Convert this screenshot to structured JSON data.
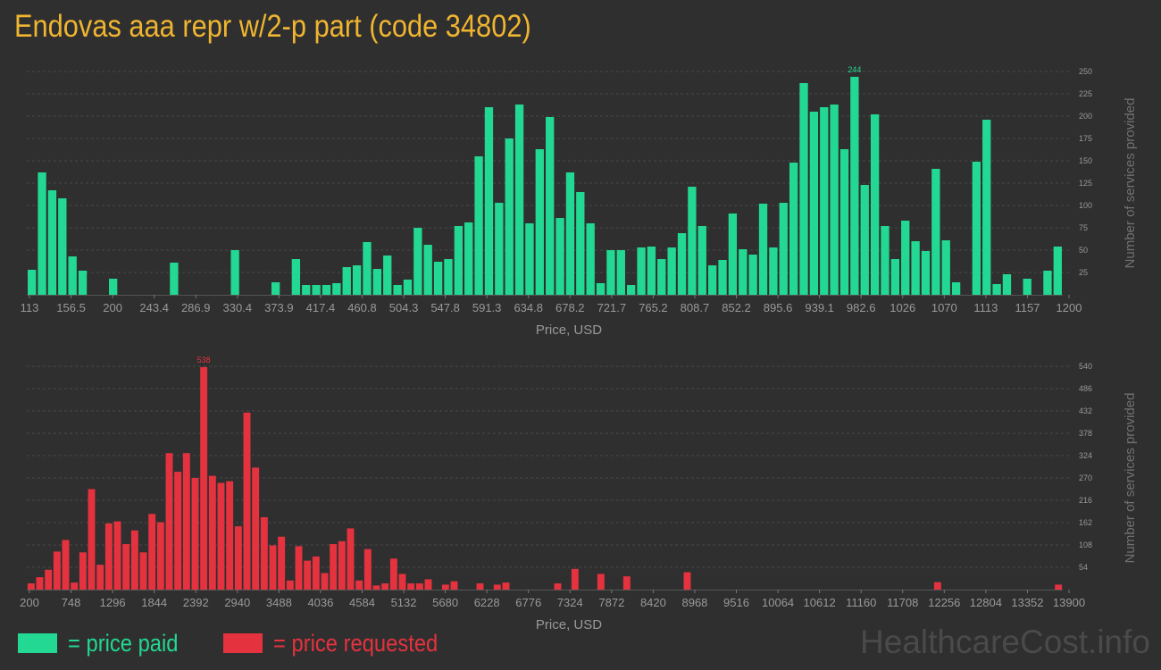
{
  "title": "Endovas aaa repr w/2-p part (code 34802)",
  "colors": {
    "background": "#2f2f2f",
    "paid": "#22d892",
    "requested": "#e5323f",
    "title": "#f0b530",
    "text": "#999999",
    "grid": "#4a4a4a"
  },
  "chart_data": [
    {
      "type": "bar",
      "title": "Price paid",
      "xlabel": "Price, USD",
      "ylabel": "Number of services provided",
      "xlim": [
        113,
        1200
      ],
      "ylim": [
        0,
        250
      ],
      "x_ticks": [
        "113",
        "156.5",
        "200",
        "243.4",
        "286.9",
        "330.4",
        "373.9",
        "417.4",
        "460.8",
        "504.3",
        "547.8",
        "591.3",
        "634.8",
        "678.2",
        "721.7",
        "765.2",
        "808.7",
        "852.2",
        "895.6",
        "939.1",
        "982.6",
        "1026",
        "1070",
        "1113",
        "1157",
        "1200"
      ],
      "y_ticks": [
        "25",
        "50",
        "75",
        "100",
        "125",
        "150",
        "175",
        "200",
        "225",
        "250"
      ],
      "peak_label": "244",
      "values": [
        28,
        137,
        117,
        108,
        43,
        27,
        0,
        0,
        18,
        0,
        0,
        0,
        0,
        0,
        36,
        0,
        0,
        0,
        0,
        0,
        50,
        0,
        0,
        0,
        14,
        0,
        40,
        11,
        11,
        11,
        13,
        31,
        33,
        59,
        29,
        44,
        11,
        17,
        75,
        56,
        37,
        40,
        77,
        81,
        155,
        210,
        103,
        175,
        213,
        80,
        163,
        199,
        86,
        137,
        115,
        80,
        13,
        50,
        50,
        11,
        53,
        54,
        40,
        53,
        69,
        121,
        77,
        33,
        39,
        91,
        51,
        45,
        102,
        53,
        103,
        148,
        237,
        205,
        210,
        213,
        163,
        244,
        123,
        202,
        77,
        40,
        83,
        60,
        49,
        141,
        61,
        14,
        0,
        149,
        196,
        12,
        23,
        0,
        18,
        0,
        27,
        54
      ]
    },
    {
      "type": "bar",
      "title": "Price requested",
      "xlabel": "Price, USD",
      "ylabel": "Number of services provided",
      "xlim": [
        200,
        13900
      ],
      "ylim": [
        0,
        540
      ],
      "x_ticks": [
        "200",
        "748",
        "1296",
        "1844",
        "2392",
        "2940",
        "3488",
        "4036",
        "4584",
        "5132",
        "5680",
        "6228",
        "6776",
        "7324",
        "7872",
        "8420",
        "8968",
        "9516",
        "10064",
        "10612",
        "11160",
        "11708",
        "12256",
        "12804",
        "13352",
        "13900"
      ],
      "y_ticks": [
        "54",
        "108",
        "162",
        "216",
        "270",
        "324",
        "378",
        "432",
        "486",
        "540"
      ],
      "peak_label": "538",
      "values": [
        15,
        30,
        48,
        92,
        120,
        17,
        90,
        243,
        60,
        160,
        165,
        110,
        143,
        90,
        183,
        163,
        330,
        285,
        330,
        270,
        538,
        275,
        258,
        262,
        153,
        428,
        295,
        175,
        107,
        128,
        22,
        105,
        70,
        80,
        40,
        110,
        117,
        148,
        22,
        98,
        10,
        15,
        75,
        38,
        15,
        15,
        25,
        0,
        12,
        20,
        0,
        0,
        15,
        0,
        12,
        17,
        0,
        0,
        0,
        0,
        0,
        15,
        0,
        50,
        0,
        0,
        38,
        0,
        0,
        32,
        0,
        0,
        0,
        0,
        0,
        0,
        42,
        0,
        0,
        0,
        0,
        0,
        0,
        0,
        0,
        0,
        0,
        0,
        0,
        0,
        0,
        0,
        0,
        0,
        0,
        0,
        0,
        0,
        0,
        0,
        0,
        0,
        0,
        0,
        0,
        18,
        0,
        0,
        0,
        0,
        0,
        0,
        0,
        0,
        0,
        0,
        0,
        0,
        0,
        12
      ]
    }
  ],
  "legend": {
    "paid": "= price paid",
    "requested": "= price requested"
  },
  "watermark": "HealthcareCost.info"
}
